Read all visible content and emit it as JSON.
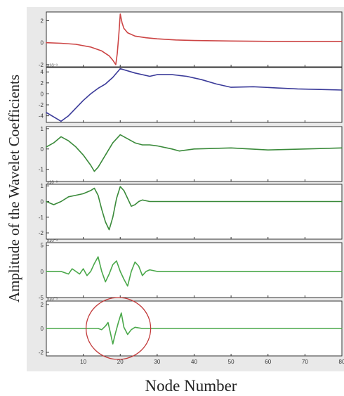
{
  "chart_data": {
    "type": "line",
    "ylabel": "Amplitude of the Wavelet Coefficients",
    "xlabel": "Node Number",
    "xlim": [
      0,
      80
    ],
    "xticks": [
      10,
      20,
      30,
      40,
      50,
      60,
      70,
      80
    ],
    "xtick_labels": [
      "10",
      "20",
      "30",
      "40",
      "50",
      "60",
      "70",
      "80"
    ],
    "grid": false,
    "legend": "none",
    "annotation": {
      "type": "circle",
      "panel": 6,
      "center_x": 19.5,
      "center_y": 0
    },
    "panels": [
      {
        "color": "#cc4444",
        "ylim": [
          -2.2,
          2.8
        ],
        "yticks": [
          -2,
          0,
          2
        ],
        "ytick_labels": [
          "-2",
          "0",
          "2"
        ],
        "exponent": "",
        "x": [
          0,
          4,
          8,
          12,
          15,
          17,
          18,
          18.8,
          19.2,
          19.6,
          20,
          20.5,
          21,
          22,
          24,
          27,
          30,
          35,
          40,
          50,
          60,
          70,
          80
        ],
        "y": [
          0.0,
          -0.05,
          -0.15,
          -0.4,
          -0.75,
          -1.2,
          -1.6,
          -2.0,
          -1.0,
          0.6,
          2.6,
          1.8,
          1.3,
          0.9,
          0.6,
          0.45,
          0.35,
          0.25,
          0.2,
          0.15,
          0.12,
          0.1,
          0.1
        ]
      },
      {
        "color": "#3a3a99",
        "ylim": [
          -5.2,
          4.8
        ],
        "yticks": [
          -4,
          -2,
          0,
          2,
          4
        ],
        "ytick_labels": [
          "-4",
          "-2",
          "0",
          "2",
          "4"
        ],
        "exponent": "x10⁻³",
        "x": [
          0,
          2,
          4,
          6,
          8,
          10,
          12,
          14,
          16,
          18,
          20,
          24,
          28,
          30,
          34,
          38,
          42,
          46,
          50,
          56,
          62,
          68,
          74,
          80
        ],
        "y": [
          -3.4,
          -4.2,
          -5.0,
          -4.0,
          -2.6,
          -1.2,
          0.0,
          1.0,
          1.8,
          3.0,
          4.6,
          3.8,
          3.2,
          3.5,
          3.5,
          3.2,
          2.6,
          1.8,
          1.2,
          1.3,
          1.1,
          0.9,
          0.8,
          0.7
        ]
      },
      {
        "color": "#3a8a3a",
        "ylim": [
          -1.6,
          1.1
        ],
        "yticks": [
          -1,
          0,
          1
        ],
        "ytick_labels": [
          "-1",
          "0",
          "1"
        ],
        "exponent": "",
        "x": [
          0,
          2,
          4,
          6,
          8,
          10,
          12,
          13,
          14,
          16,
          18,
          20,
          22,
          24,
          26,
          28,
          30,
          34,
          36,
          40,
          50,
          60,
          70,
          80
        ],
        "y": [
          0.1,
          0.3,
          0.6,
          0.4,
          0.1,
          -0.3,
          -0.8,
          -1.1,
          -0.9,
          -0.3,
          0.3,
          0.7,
          0.5,
          0.3,
          0.2,
          0.2,
          0.15,
          0.0,
          -0.1,
          0.0,
          0.05,
          -0.05,
          0.0,
          0.05
        ]
      },
      {
        "color": "#3a8a3a",
        "ylim": [
          -2.4,
          1.1
        ],
        "yticks": [
          -2,
          -1,
          0,
          1
        ],
        "ytick_labels": [
          "-2",
          "-1",
          "0",
          "1"
        ],
        "exponent": "x10⁻³",
        "x": [
          0,
          2,
          4,
          6,
          8,
          10,
          12,
          13,
          14,
          15,
          16,
          17,
          18,
          19,
          20,
          21,
          22,
          23,
          24,
          25,
          26,
          28,
          30,
          40,
          50,
          60,
          70,
          80
        ],
        "y": [
          0.0,
          -0.2,
          0.0,
          0.3,
          0.4,
          0.5,
          0.7,
          0.85,
          0.4,
          -0.5,
          -1.3,
          -1.8,
          -1.0,
          0.2,
          0.95,
          0.7,
          0.2,
          -0.3,
          -0.2,
          0.0,
          0.1,
          0.0,
          0.0,
          0.0,
          0.0,
          0.0,
          0.0,
          0.0
        ]
      },
      {
        "color": "#4aa84a",
        "ylim": [
          -5,
          5.5
        ],
        "yticks": [
          -5,
          0,
          5
        ],
        "ytick_labels": [
          "-5",
          "0",
          "5"
        ],
        "exponent": "x10⁻⁴",
        "x": [
          0,
          4,
          6,
          7,
          8,
          9,
          10,
          11,
          12,
          13,
          14,
          15,
          16,
          17,
          18,
          19,
          20,
          21,
          22,
          23,
          24,
          25,
          26,
          27,
          28,
          30,
          40,
          50,
          60,
          70,
          80
        ],
        "y": [
          0.0,
          0.0,
          -0.5,
          0.5,
          0.0,
          -0.5,
          0.5,
          -0.8,
          0.0,
          1.5,
          2.8,
          0.0,
          -2.0,
          -0.5,
          1.3,
          2.0,
          0.0,
          -1.5,
          -2.8,
          0.0,
          1.8,
          1.0,
          -0.8,
          0.0,
          0.3,
          0.0,
          0.0,
          0.0,
          0.0,
          0.0,
          0.0
        ]
      },
      {
        "color": "#4aa84a",
        "ylim": [
          -2.3,
          2.3
        ],
        "yticks": [
          -2,
          0,
          2
        ],
        "ytick_labels": [
          "-2",
          "0",
          "2"
        ],
        "exponent": "x10⁻⁵",
        "x": [
          0,
          10,
          14,
          15,
          16,
          16.7,
          17.3,
          18,
          18.7,
          19.5,
          20.3,
          21,
          22,
          23,
          24,
          26,
          30,
          40,
          50,
          60,
          70,
          80
        ],
        "y": [
          0.0,
          0.0,
          0.0,
          -0.1,
          0.2,
          0.5,
          -0.3,
          -1.3,
          -0.4,
          0.5,
          1.3,
          0.1,
          -0.5,
          -0.1,
          0.1,
          0.0,
          0.0,
          0.0,
          0.0,
          0.0,
          0.0,
          0.0
        ]
      }
    ]
  }
}
